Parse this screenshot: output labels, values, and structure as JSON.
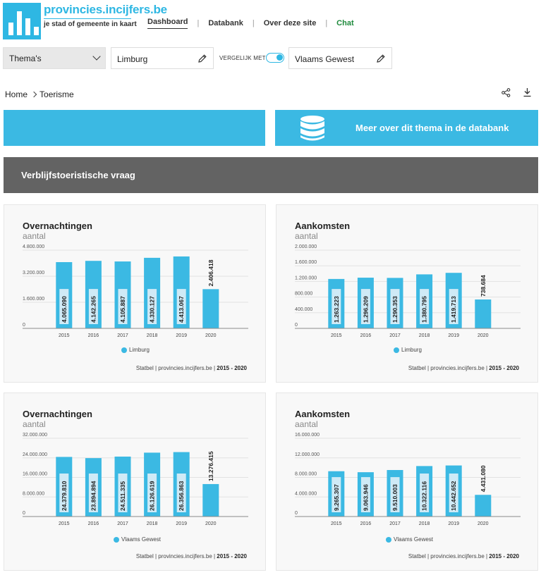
{
  "header": {
    "logo_title": "provincies.incijfers.be",
    "logo_subtitle": "je stad of gemeente in kaart",
    "nav": [
      {
        "label": "Dashboard"
      },
      {
        "label": "Databank"
      },
      {
        "label": "Over deze site"
      },
      {
        "label": "Chat"
      }
    ],
    "nav_separator": "|"
  },
  "controls": {
    "thema_label": "Thema's",
    "area_value": "Limburg",
    "compare_label": "VERGELIJK MET",
    "compare_value": "Vlaams Gewest"
  },
  "breadcrumb": {
    "home": "Home",
    "current": "Toerisme"
  },
  "buttons": {
    "databank_label": "Meer over dit thema in de databank"
  },
  "section": {
    "title": "Verblijfstoeristische vraag"
  },
  "colors": {
    "accent": "#3bb9e3",
    "section_bar": "#636363",
    "chat": "#1e8a3c"
  },
  "charts": [
    {
      "title": "Overnachtingen",
      "subtitle": "aantal",
      "legend": "Limburg",
      "source_text": "Statbel | provincies.incijfers.be | ",
      "source_years": "2015 - 2020",
      "chart_data": {
        "type": "bar",
        "categories": [
          "2015",
          "2016",
          "2017",
          "2018",
          "2019",
          "2020"
        ],
        "series": [
          {
            "name": "Limburg",
            "values": [
              4065090,
              4142265,
              4105887,
              4330127,
              4413067,
              2406418
            ]
          }
        ],
        "data_labels": [
          "4.065.090",
          "4.142.265",
          "4.105.887",
          "4.330.127",
          "4.413.067",
          "2.406.418"
        ],
        "yticks": [
          "0",
          "1.600.000",
          "3.200.000",
          "4.800.000"
        ],
        "ylim": [
          0,
          4800000
        ]
      }
    },
    {
      "title": "Aankomsten",
      "subtitle": "aantal",
      "legend": "Limburg",
      "source_text": "Statbel | provincies.incijfers.be | ",
      "source_years": "2015 - 2020",
      "chart_data": {
        "type": "bar",
        "categories": [
          "2015",
          "2016",
          "2017",
          "2018",
          "2019",
          "2020"
        ],
        "series": [
          {
            "name": "Limburg",
            "values": [
              1263223,
              1296209,
              1290353,
              1380795,
              1419713,
              738684
            ]
          }
        ],
        "data_labels": [
          "1.263.223",
          "1.296.209",
          "1.290.353",
          "1.380.795",
          "1.419.713",
          "738.684"
        ],
        "yticks": [
          "0",
          "400.000",
          "800.000",
          "1.200.000",
          "1.600.000",
          "2.000.000"
        ],
        "ylim": [
          0,
          2000000
        ]
      }
    },
    {
      "title": "Overnachtingen",
      "subtitle": "aantal",
      "legend": "Vlaams Gewest",
      "source_text": "Statbel | provincies.incijfers.be | ",
      "source_years": "2015 - 2020",
      "chart_data": {
        "type": "bar",
        "categories": [
          "2015",
          "2016",
          "2017",
          "2018",
          "2019",
          "2020"
        ],
        "series": [
          {
            "name": "Vlaams Gewest",
            "values": [
              24379810,
              23894894,
              24511335,
              26126619,
              26356863,
              13276415
            ]
          }
        ],
        "data_labels": [
          "24.379.810",
          "23.894.894",
          "24.511.335",
          "26.126.619",
          "26.356.863",
          "13.276.415"
        ],
        "yticks": [
          "0",
          "8.000.000",
          "16.000.000",
          "24.000.000",
          "32.000.000"
        ],
        "ylim": [
          0,
          32000000
        ]
      }
    },
    {
      "title": "Aankomsten",
      "subtitle": "aantal",
      "legend": "Vlaams Gewest",
      "source_text": "Statbel | provincies.incijfers.be | ",
      "source_years": "2015 - 2020",
      "chart_data": {
        "type": "bar",
        "categories": [
          "2015",
          "2016",
          "2017",
          "2018",
          "2019",
          "2020"
        ],
        "series": [
          {
            "name": "Vlaams Gewest",
            "values": [
              9265307,
              9063946,
              9510003,
              10322116,
              10442652,
              4431080
            ]
          }
        ],
        "data_labels": [
          "9.265.307",
          "9.063.946",
          "9.510.003",
          "10.322.116",
          "10.442.652",
          "4.431.080"
        ],
        "yticks": [
          "0",
          "4.000.000",
          "8.000.000",
          "12.000.000",
          "16.000.000"
        ],
        "ylim": [
          0,
          16000000
        ]
      }
    }
  ]
}
